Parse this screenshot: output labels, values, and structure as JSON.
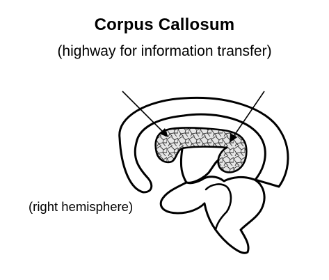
{
  "title": "Corpus Callosum",
  "subtitle": "(highway for information transfer)",
  "side_label": "(right hemisphere)",
  "colors": {
    "ink": "#000000",
    "background": "#ffffff",
    "fill": "#d4d4d4"
  }
}
